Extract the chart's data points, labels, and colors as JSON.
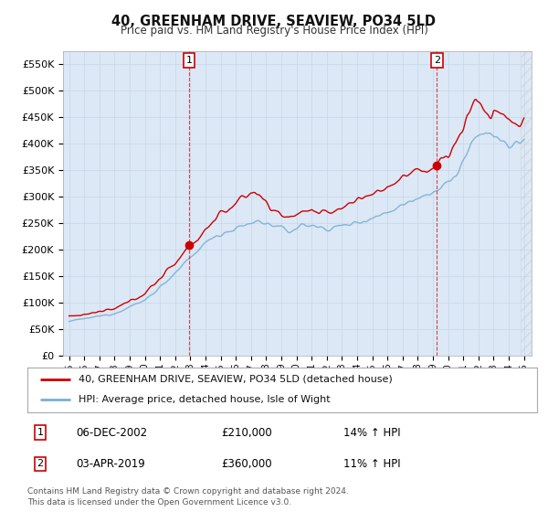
{
  "title": "40, GREENHAM DRIVE, SEAVIEW, PO34 5LD",
  "subtitle": "Price paid vs. HM Land Registry's House Price Index (HPI)",
  "plot_bg_color": "#dce8f5",
  "ylim": [
    0,
    575000
  ],
  "yticks": [
    0,
    50000,
    100000,
    150000,
    200000,
    250000,
    300000,
    350000,
    400000,
    450000,
    500000,
    550000
  ],
  "ytick_labels": [
    "£0",
    "£50K",
    "£100K",
    "£150K",
    "£200K",
    "£250K",
    "£300K",
    "£350K",
    "£400K",
    "£450K",
    "£500K",
    "£550K"
  ],
  "sale1_year": 2002.92,
  "sale1_price": 210000,
  "sale1_date_str": "06-DEC-2002",
  "sale1_hpi_pct": "14% ↑ HPI",
  "sale2_year": 2019.25,
  "sale2_price": 360000,
  "sale2_date_str": "03-APR-2019",
  "sale2_hpi_pct": "11% ↑ HPI",
  "legend_line1": "40, GREENHAM DRIVE, SEAVIEW, PO34 5LD (detached house)",
  "legend_line2": "HPI: Average price, detached house, Isle of Wight",
  "footer": "Contains HM Land Registry data © Crown copyright and database right 2024.\nThis data is licensed under the Open Government Licence v3.0.",
  "line_red": "#cc0000",
  "line_blue": "#7aafd4",
  "x_start_year": 1995,
  "x_end_year": 2025
}
